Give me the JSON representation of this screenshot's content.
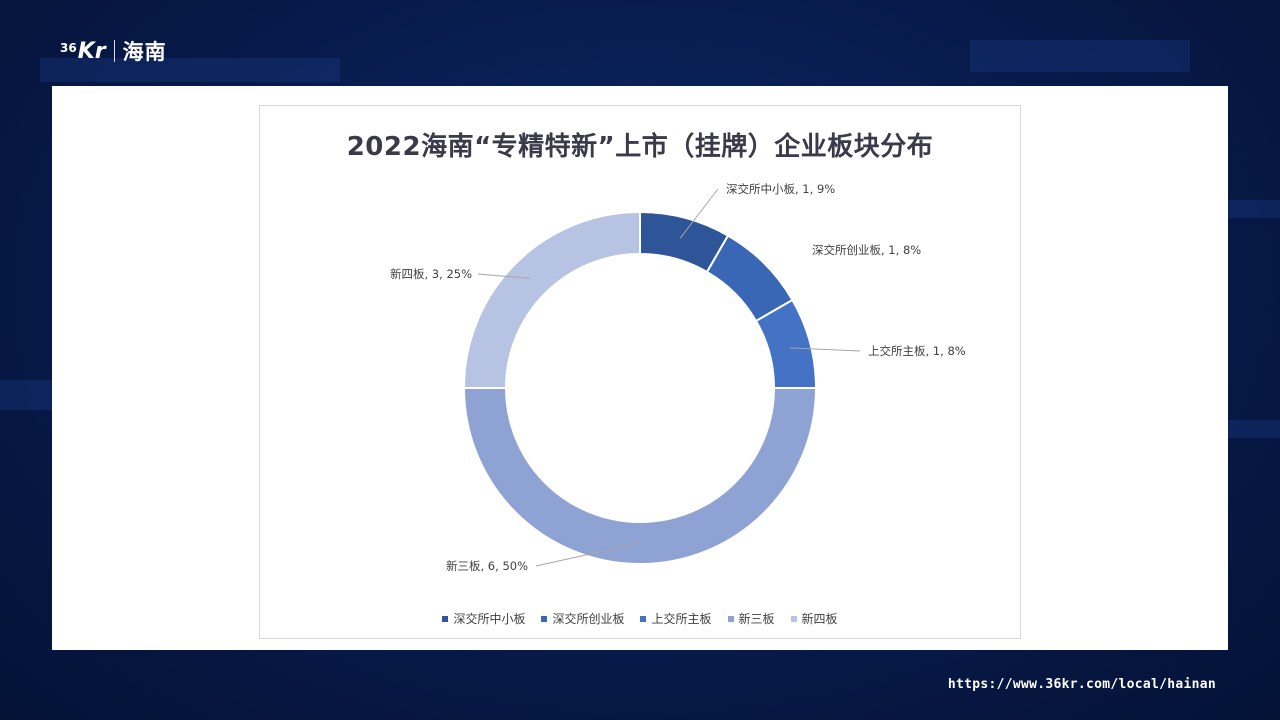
{
  "brand": {
    "prefix": "36",
    "suffix": "Kr",
    "city": "海南"
  },
  "footer": {
    "url": "https://www.36kr.com/local/hainan"
  },
  "chart_data": {
    "type": "pie",
    "variant": "donut",
    "title": "2022海南“专精特新”上市（挂牌）企业板块分布",
    "legend_position": "bottom",
    "categories": [
      "深交所中小板",
      "深交所创业板",
      "上交所主板",
      "新三板",
      "新四板"
    ],
    "values": [
      1,
      1,
      1,
      6,
      3
    ],
    "percents": [
      "9%",
      "8%",
      "8%",
      "50%",
      "25%"
    ],
    "data_labels": [
      "深交所中小板, 1, 9%",
      "深交所创业板, 1, 8%",
      "上交所主板, 1, 8%",
      "新三板, 6, 50%",
      "新四板, 3, 25%"
    ],
    "colors": [
      "#2e5597",
      "#3a67b5",
      "#4472c4",
      "#8fa2d4",
      "#b7c3e3"
    ]
  }
}
